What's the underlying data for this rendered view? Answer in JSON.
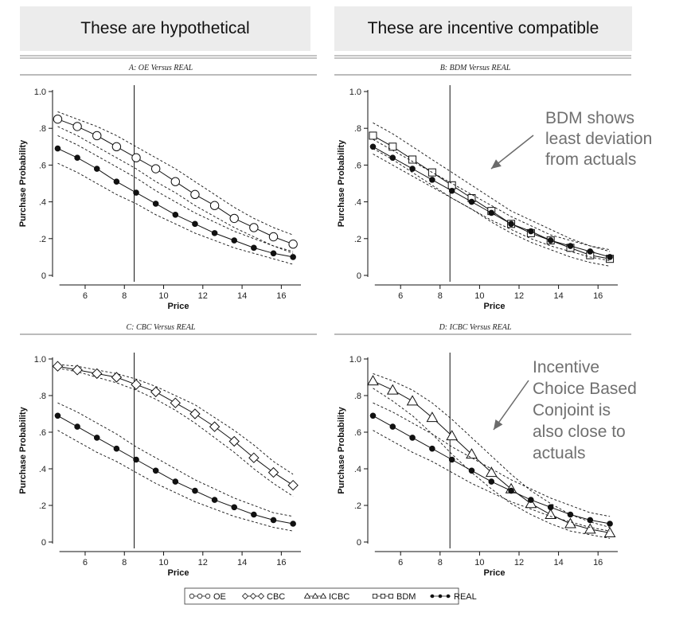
{
  "banners": {
    "left": "These are hypothetical",
    "right": "These are incentive compatible"
  },
  "annotations": [
    {
      "panel": 1,
      "lines": [
        "BDM shows",
        "least deviation",
        "from actuals"
      ]
    },
    {
      "panel": 3,
      "lines": [
        "Incentive",
        "Choice Based",
        "Conjoint is",
        "also close to",
        "actuals"
      ]
    }
  ],
  "legend": [
    {
      "label": "OE",
      "marker": "circle-open"
    },
    {
      "label": "CBC",
      "marker": "diamond-open"
    },
    {
      "label": "ICBC",
      "marker": "triangle-open"
    },
    {
      "label": "BDM",
      "marker": "square-open"
    },
    {
      "label": "REAL",
      "marker": "circle-filled"
    }
  ],
  "chart_data": [
    {
      "type": "line",
      "title": "A: OE Versus REAL",
      "xlabel": "Price",
      "ylabel": "Purchase Probability",
      "xlim": [
        4.5,
        17
      ],
      "ylim": [
        0,
        1.0
      ],
      "xticks": [
        6,
        8,
        10,
        12,
        14,
        16
      ],
      "xtick_labels": [
        "6",
        "8",
        "10",
        "12",
        "14",
        "16"
      ],
      "yticks": [
        0,
        0.2,
        0.4,
        0.6,
        0.8,
        1.0
      ],
      "ytick_labels": [
        "0",
        ".2",
        ".4",
        ".6",
        ".8",
        "1.0"
      ],
      "vline": 8.5,
      "x": [
        4.6,
        5.6,
        6.6,
        7.6,
        8.6,
        9.6,
        10.6,
        11.6,
        12.6,
        13.6,
        14.6,
        15.6,
        16.6
      ],
      "series": [
        {
          "name": "OE",
          "marker": "circle-open",
          "values": [
            0.85,
            0.81,
            0.76,
            0.7,
            0.64,
            0.58,
            0.51,
            0.44,
            0.38,
            0.31,
            0.26,
            0.21,
            0.17
          ],
          "lower": [
            0.81,
            0.76,
            0.7,
            0.64,
            0.58,
            0.51,
            0.45,
            0.38,
            0.32,
            0.26,
            0.21,
            0.16,
            0.12
          ],
          "upper": [
            0.89,
            0.85,
            0.81,
            0.76,
            0.7,
            0.64,
            0.58,
            0.51,
            0.44,
            0.37,
            0.31,
            0.26,
            0.22
          ]
        },
        {
          "name": "REAL",
          "marker": "circle-filled",
          "values": [
            0.69,
            0.64,
            0.58,
            0.51,
            0.45,
            0.39,
            0.33,
            0.28,
            0.23,
            0.19,
            0.15,
            0.12,
            0.1
          ],
          "lower": [
            0.61,
            0.56,
            0.5,
            0.44,
            0.39,
            0.33,
            0.28,
            0.23,
            0.19,
            0.15,
            0.12,
            0.09,
            0.06
          ],
          "upper": [
            0.76,
            0.71,
            0.65,
            0.59,
            0.53,
            0.46,
            0.4,
            0.34,
            0.29,
            0.24,
            0.2,
            0.16,
            0.13
          ]
        }
      ]
    },
    {
      "type": "line",
      "title": "B: BDM Versus REAL",
      "xlabel": "Price",
      "ylabel": "Purchase Probability",
      "xlim": [
        4.5,
        17
      ],
      "ylim": [
        0,
        1.0
      ],
      "xticks": [
        6,
        8,
        10,
        12,
        14,
        16
      ],
      "xtick_labels": [
        "6",
        "8",
        "10",
        "12",
        "14",
        "16"
      ],
      "yticks": [
        0,
        0.2,
        0.4,
        0.6,
        0.8,
        1.0
      ],
      "ytick_labels": [
        "0",
        ".2",
        ".4",
        ".6",
        ".8",
        "1.0"
      ],
      "vline": 8.5,
      "x": [
        4.6,
        5.6,
        6.6,
        7.6,
        8.6,
        9.6,
        10.6,
        11.6,
        12.6,
        13.6,
        14.6,
        15.6,
        16.6
      ],
      "series": [
        {
          "name": "BDM",
          "marker": "square-open",
          "values": [
            0.76,
            0.7,
            0.63,
            0.56,
            0.49,
            0.42,
            0.35,
            0.28,
            0.23,
            0.19,
            0.15,
            0.11,
            0.09
          ],
          "lower": [
            0.69,
            0.63,
            0.56,
            0.49,
            0.42,
            0.36,
            0.29,
            0.23,
            0.18,
            0.14,
            0.1,
            0.07,
            0.05
          ],
          "upper": [
            0.83,
            0.77,
            0.7,
            0.63,
            0.56,
            0.49,
            0.42,
            0.35,
            0.3,
            0.25,
            0.2,
            0.16,
            0.14
          ]
        },
        {
          "name": "REAL",
          "marker": "circle-filled",
          "values": [
            0.7,
            0.64,
            0.58,
            0.52,
            0.46,
            0.4,
            0.34,
            0.28,
            0.24,
            0.19,
            0.16,
            0.13,
            0.1
          ],
          "lower": [
            0.66,
            0.6,
            0.54,
            0.48,
            0.42,
            0.36,
            0.3,
            0.25,
            0.2,
            0.16,
            0.13,
            0.1,
            0.08
          ],
          "upper": [
            0.74,
            0.68,
            0.62,
            0.56,
            0.5,
            0.44,
            0.38,
            0.32,
            0.27,
            0.22,
            0.19,
            0.16,
            0.13
          ]
        }
      ]
    },
    {
      "type": "line",
      "title": "C: CBC Versus REAL",
      "xlabel": "Price",
      "ylabel": "Purchase Probability",
      "xlim": [
        4.5,
        17
      ],
      "ylim": [
        0,
        1.0
      ],
      "xticks": [
        6,
        8,
        10,
        12,
        14,
        16
      ],
      "xtick_labels": [
        "6",
        "8",
        "10",
        "12",
        "14",
        "16"
      ],
      "yticks": [
        0,
        0.2,
        0.4,
        0.6,
        0.8,
        1.0
      ],
      "ytick_labels": [
        "0",
        ".2",
        ".4",
        ".6",
        ".8",
        "1.0"
      ],
      "vline": 8.5,
      "x": [
        4.6,
        5.6,
        6.6,
        7.6,
        8.6,
        9.6,
        10.6,
        11.6,
        12.6,
        13.6,
        14.6,
        15.6,
        16.6
      ],
      "series": [
        {
          "name": "CBC",
          "marker": "diamond-open",
          "values": [
            0.96,
            0.94,
            0.92,
            0.9,
            0.86,
            0.82,
            0.76,
            0.7,
            0.63,
            0.55,
            0.46,
            0.38,
            0.31
          ],
          "lower": [
            0.95,
            0.93,
            0.9,
            0.87,
            0.83,
            0.78,
            0.72,
            0.65,
            0.57,
            0.49,
            0.4,
            0.32,
            0.25
          ],
          "upper": [
            0.97,
            0.96,
            0.94,
            0.92,
            0.89,
            0.85,
            0.8,
            0.75,
            0.68,
            0.61,
            0.53,
            0.44,
            0.37
          ]
        },
        {
          "name": "REAL",
          "marker": "circle-filled",
          "values": [
            0.69,
            0.63,
            0.57,
            0.51,
            0.45,
            0.39,
            0.33,
            0.28,
            0.23,
            0.19,
            0.15,
            0.12,
            0.1
          ],
          "lower": [
            0.61,
            0.55,
            0.49,
            0.44,
            0.38,
            0.32,
            0.27,
            0.22,
            0.18,
            0.14,
            0.11,
            0.08,
            0.06
          ],
          "upper": [
            0.76,
            0.71,
            0.65,
            0.59,
            0.52,
            0.46,
            0.4,
            0.34,
            0.29,
            0.24,
            0.2,
            0.16,
            0.14
          ]
        }
      ]
    },
    {
      "type": "line",
      "title": "D: ICBC Versus REAL",
      "xlabel": "Price",
      "ylabel": "Purchase Probability",
      "xlim": [
        4.5,
        17
      ],
      "ylim": [
        0,
        1.0
      ],
      "xticks": [
        6,
        8,
        10,
        12,
        14,
        16
      ],
      "xtick_labels": [
        "6",
        "8",
        "10",
        "12",
        "14",
        "16"
      ],
      "yticks": [
        0,
        0.2,
        0.4,
        0.6,
        0.8,
        1.0
      ],
      "ytick_labels": [
        "0",
        ".2",
        ".4",
        ".6",
        ".8",
        "1.0"
      ],
      "vline": 8.5,
      "x": [
        4.6,
        5.6,
        6.6,
        7.6,
        8.6,
        9.6,
        10.6,
        11.6,
        12.6,
        13.6,
        14.6,
        15.6,
        16.6
      ],
      "series": [
        {
          "name": "ICBC",
          "marker": "triangle-open",
          "values": [
            0.88,
            0.83,
            0.77,
            0.68,
            0.58,
            0.48,
            0.38,
            0.29,
            0.21,
            0.15,
            0.1,
            0.07,
            0.05
          ],
          "lower": [
            0.84,
            0.77,
            0.69,
            0.59,
            0.48,
            0.38,
            0.29,
            0.21,
            0.15,
            0.1,
            0.06,
            0.04,
            0.02
          ],
          "upper": [
            0.92,
            0.88,
            0.83,
            0.76,
            0.67,
            0.57,
            0.47,
            0.37,
            0.28,
            0.21,
            0.15,
            0.11,
            0.08
          ]
        },
        {
          "name": "REAL",
          "marker": "circle-filled",
          "values": [
            0.69,
            0.63,
            0.57,
            0.51,
            0.45,
            0.39,
            0.33,
            0.28,
            0.23,
            0.19,
            0.15,
            0.12,
            0.1
          ],
          "lower": [
            0.61,
            0.55,
            0.49,
            0.44,
            0.38,
            0.32,
            0.27,
            0.22,
            0.18,
            0.14,
            0.11,
            0.08,
            0.06
          ],
          "upper": [
            0.76,
            0.71,
            0.65,
            0.59,
            0.52,
            0.46,
            0.4,
            0.34,
            0.29,
            0.24,
            0.2,
            0.16,
            0.14
          ]
        }
      ]
    }
  ]
}
